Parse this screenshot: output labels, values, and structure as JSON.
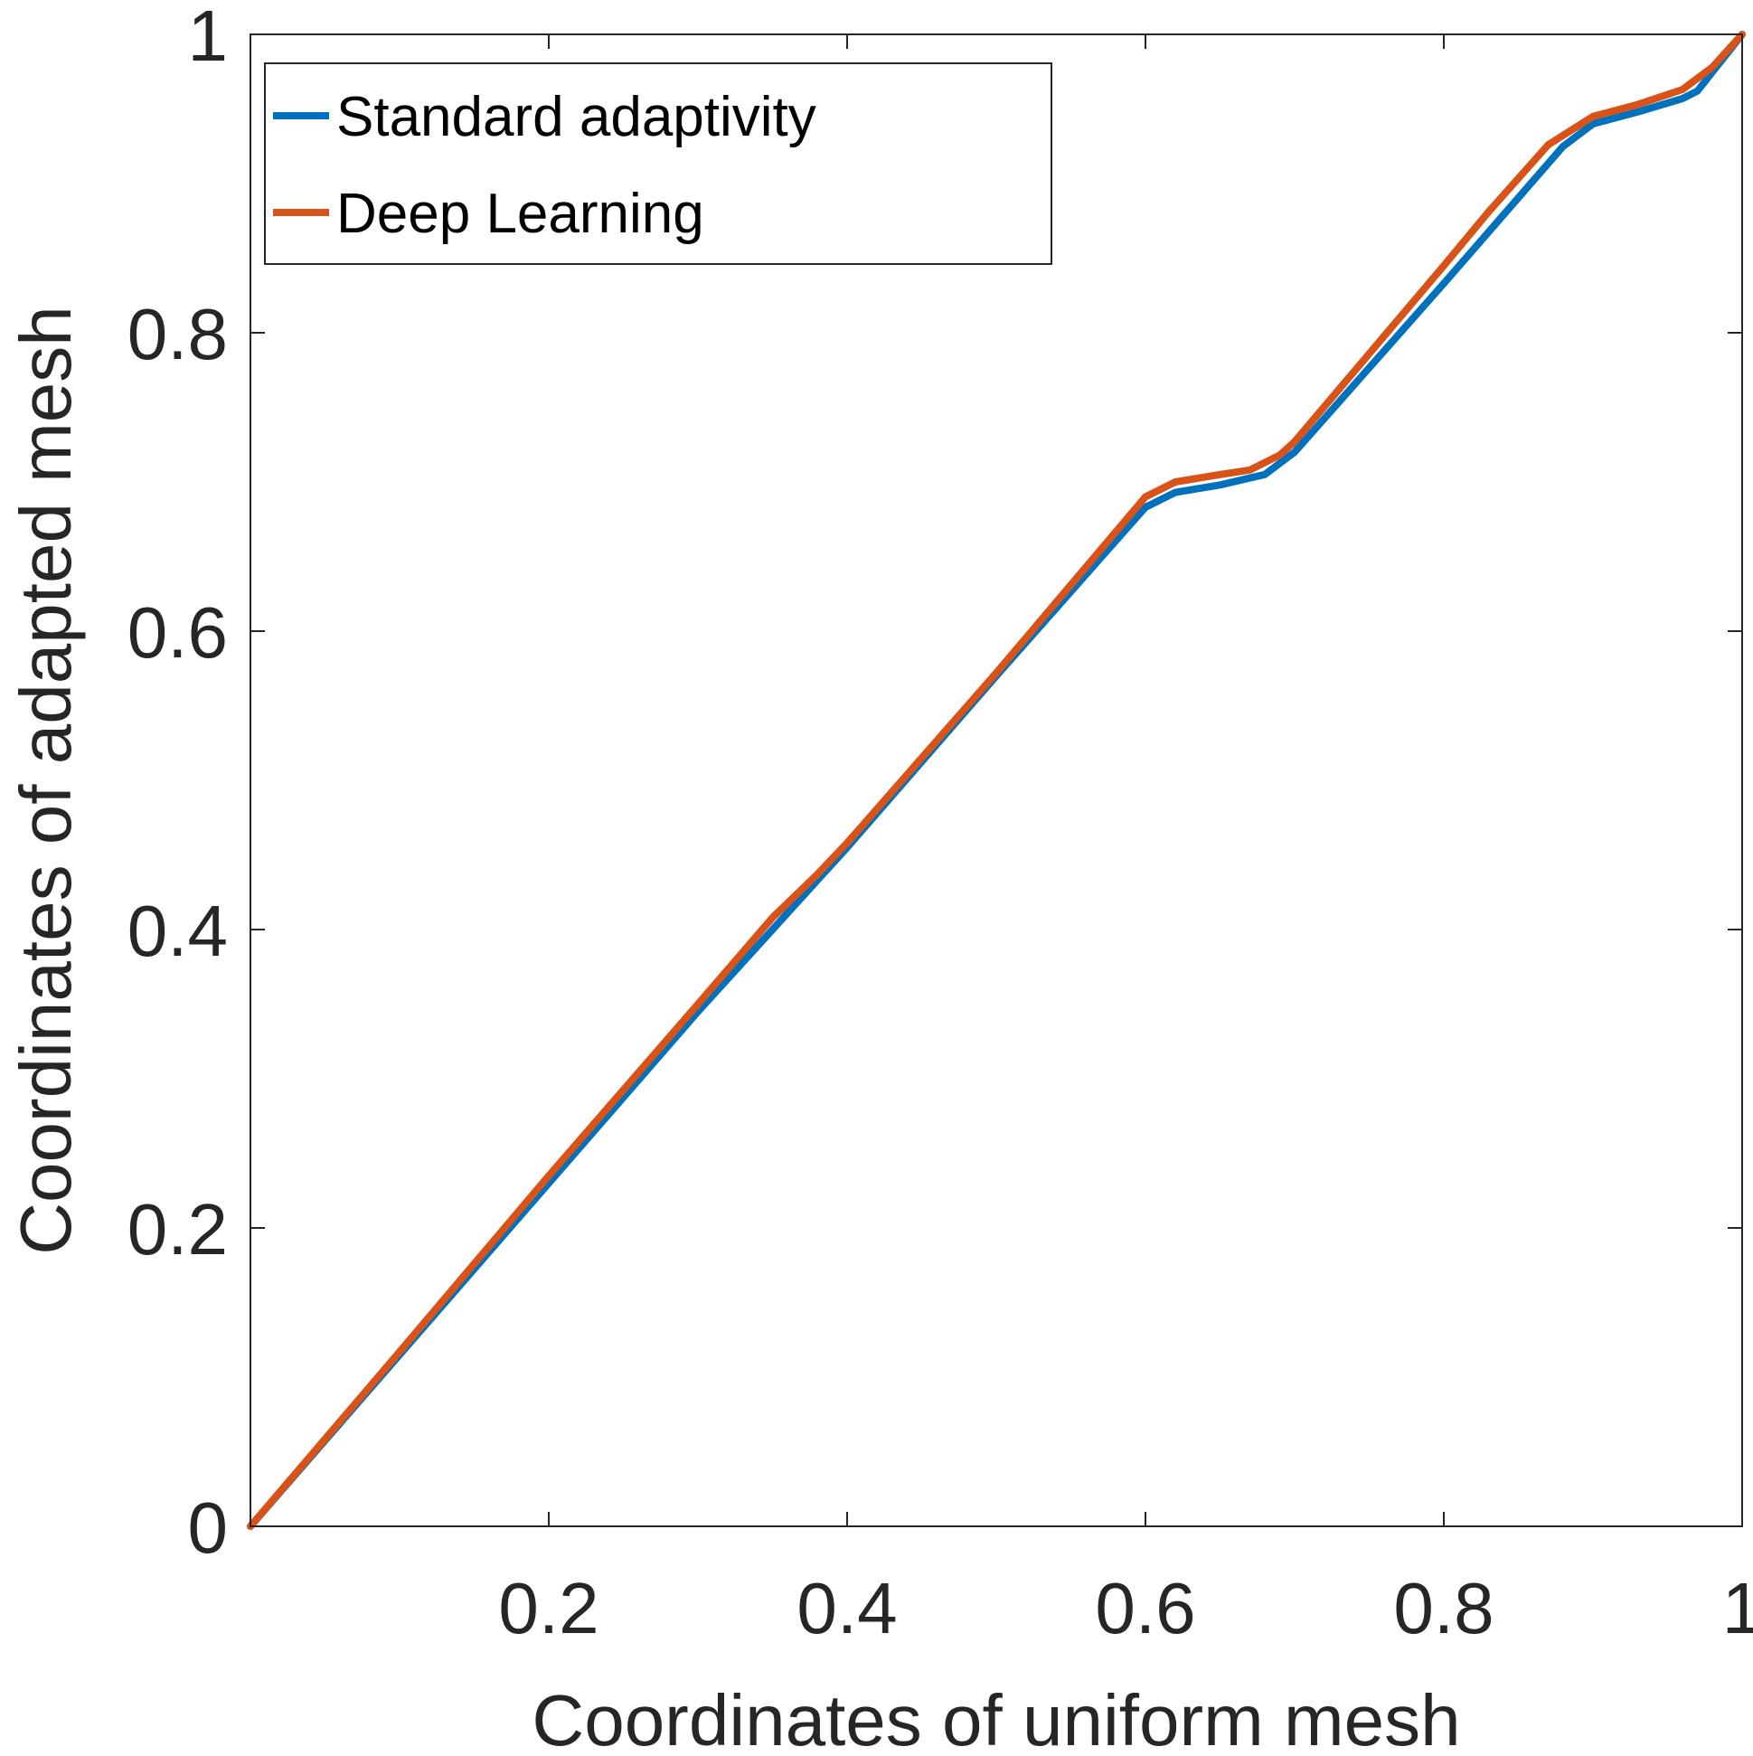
{
  "chart_data": {
    "type": "line",
    "title": "",
    "xlabel": "Coordinates of uniform mesh",
    "ylabel": "Coordinates of adapted mesh",
    "xlim": [
      0,
      1
    ],
    "ylim": [
      0,
      1
    ],
    "xticks": [
      0.2,
      0.4,
      0.6,
      0.8,
      1
    ],
    "xtick_labels": [
      "0.2",
      "0.4",
      "0.6",
      "0.8",
      "1"
    ],
    "yticks": [
      0,
      0.2,
      0.4,
      0.6,
      0.8,
      1
    ],
    "ytick_labels": [
      "0",
      "0.2",
      "0.4",
      "0.6",
      "0.8",
      "1"
    ],
    "grid": false,
    "legend_position": "top-left",
    "series": [
      {
        "name": "Standard adaptivity",
        "color": "#0072BD",
        "x": [
          0,
          0.1,
          0.2,
          0.3,
          0.35,
          0.4,
          0.5,
          0.6,
          0.62,
          0.65,
          0.68,
          0.7,
          0.8,
          0.88,
          0.9,
          0.93,
          0.96,
          0.97,
          1.0
        ],
        "y": [
          0,
          0.115,
          0.23,
          0.345,
          0.4,
          0.455,
          0.57,
          0.683,
          0.693,
          0.698,
          0.705,
          0.72,
          0.833,
          0.925,
          0.94,
          0.948,
          0.957,
          0.962,
          1.0
        ]
      },
      {
        "name": "Deep Learning",
        "color": "#D95319",
        "x": [
          0,
          0.1,
          0.2,
          0.3,
          0.35,
          0.38,
          0.4,
          0.5,
          0.6,
          0.62,
          0.65,
          0.67,
          0.69,
          0.7,
          0.8,
          0.83,
          0.87,
          0.9,
          0.93,
          0.96,
          0.98,
          1.0
        ],
        "y": [
          0,
          0.117,
          0.235,
          0.35,
          0.408,
          0.437,
          0.458,
          0.572,
          0.69,
          0.7,
          0.705,
          0.708,
          0.718,
          0.727,
          0.845,
          0.881,
          0.926,
          0.945,
          0.953,
          0.963,
          0.978,
          1.0
        ]
      }
    ]
  }
}
